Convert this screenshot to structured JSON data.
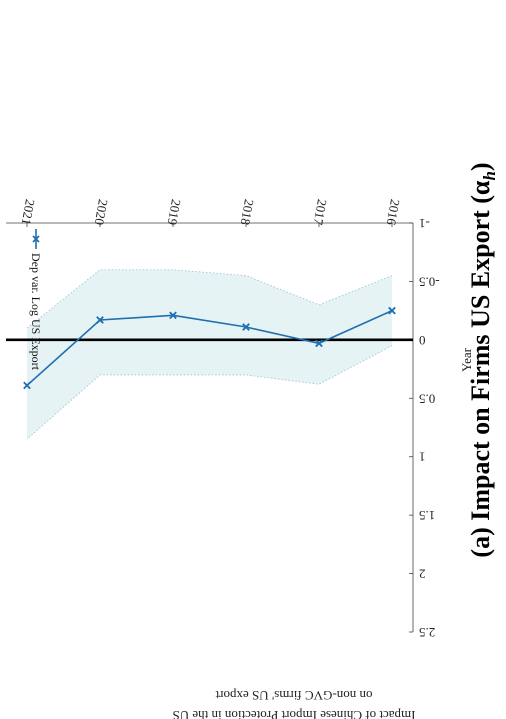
{
  "chart_data": {
    "type": "line",
    "caption": "(a) Impact on Firms US Export (α",
    "caption_sub": "h",
    "caption_close": ")",
    "xlabel": "Year",
    "ylabel_line1": "Impact of Chinese Import Protection in the US",
    "ylabel_line2": "on non-GVC firms' US export",
    "categories": [
      "2016",
      "2017",
      "2018",
      "2019",
      "2020",
      "2021"
    ],
    "ylim": [
      -1,
      2.5
    ],
    "yticks": [
      2.5,
      2,
      1.5,
      1,
      0.5,
      0,
      -0.5,
      -1
    ],
    "ytick_labels": [
      "2.5",
      "2",
      "1.5",
      "1",
      "0.5",
      "0",
      "-0.5",
      "-1"
    ],
    "series": [
      {
        "name": "Dep var. Log US Export",
        "values": [
          -0.25,
          0.03,
          -0.11,
          -0.21,
          -0.17,
          0.39
        ],
        "ci_lower": [
          -0.55,
          -0.3,
          -0.55,
          -0.6,
          -0.6,
          -0.1
        ],
        "ci_upper": [
          0.05,
          0.38,
          0.3,
          0.3,
          0.3,
          0.85
        ],
        "color": "#1f6fb0",
        "ci_color": "#e6f3f5"
      }
    ],
    "zero_line": true,
    "grid": false,
    "legend_position": "top-left"
  }
}
